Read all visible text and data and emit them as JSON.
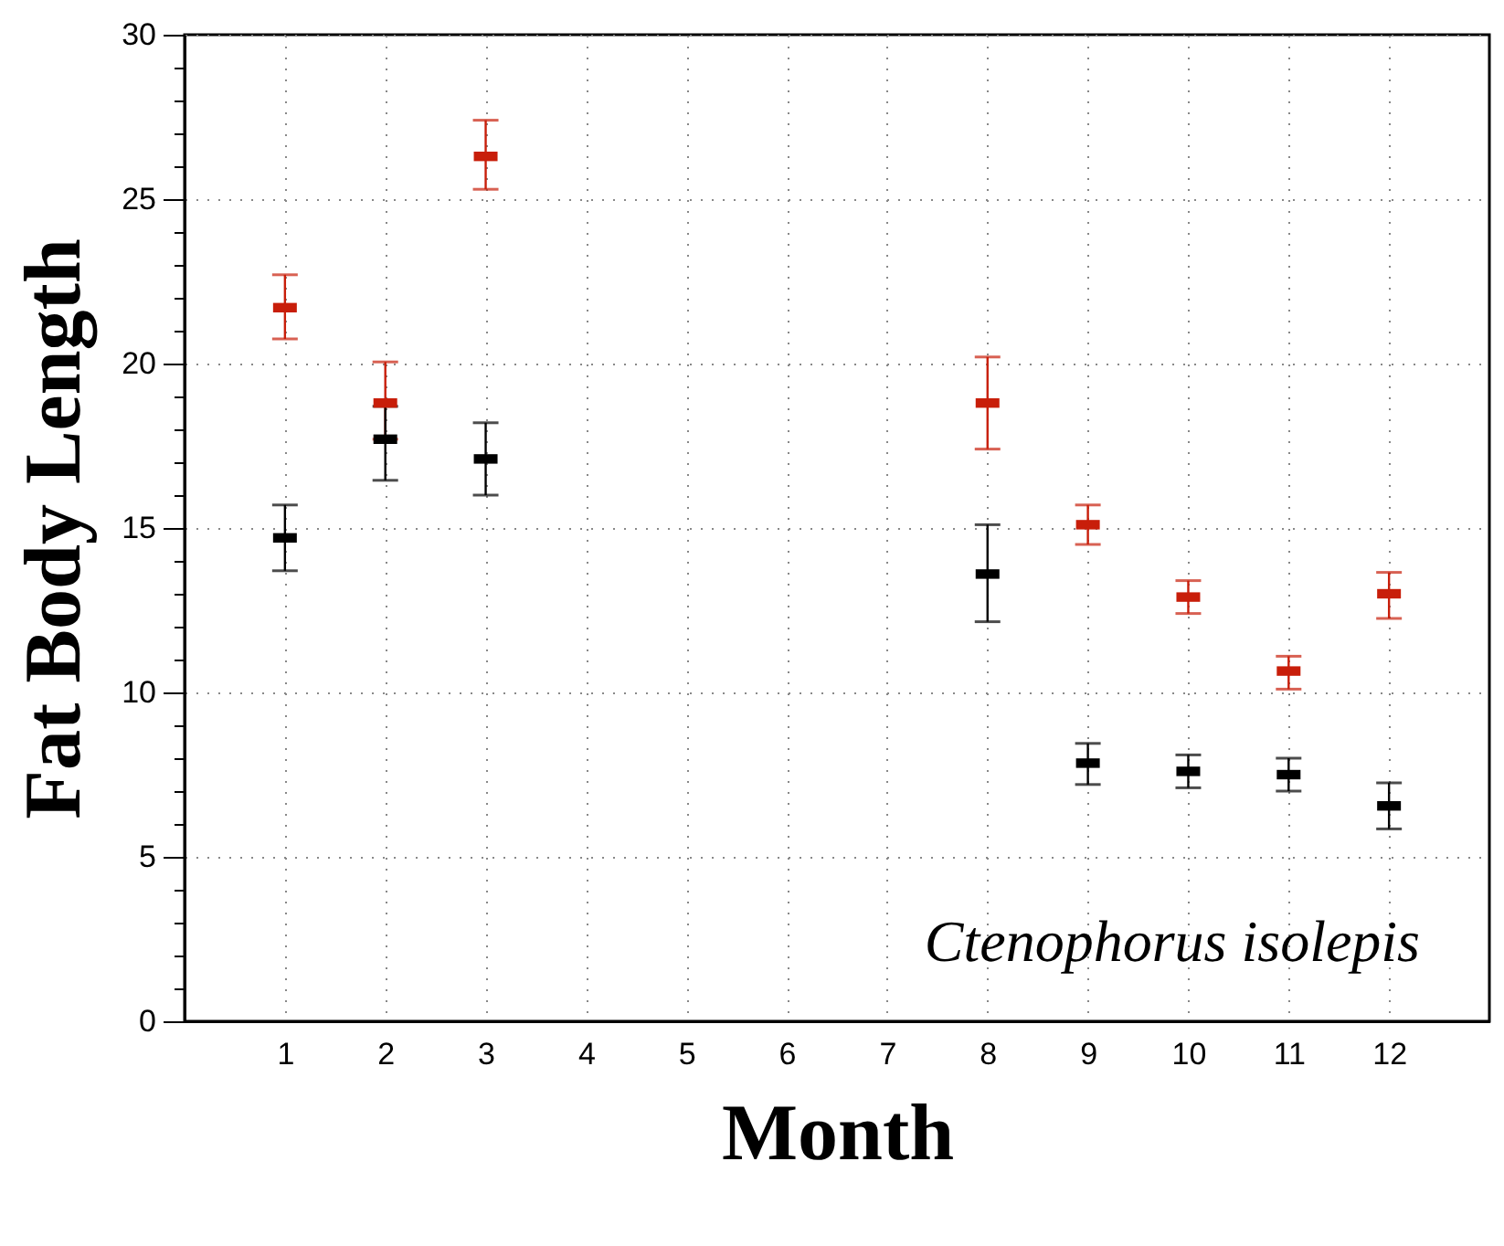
{
  "chart_data": {
    "type": "scatter",
    "xlabel": "Month",
    "ylabel": "Fat Body Length",
    "annotations": [
      "Ctenophorus isolepis"
    ],
    "x": [
      1,
      2,
      3,
      8,
      9,
      10,
      11,
      12
    ],
    "series": [
      {
        "color": "#c81e0a",
        "values": [
          21.7,
          18.8,
          26.3,
          18.8,
          15.1,
          12.9,
          10.65,
          13.0
        ],
        "errors": [
          [
            20.75,
            22.7
          ],
          [
            17.7,
            20.05
          ],
          [
            25.3,
            27.4
          ],
          [
            17.4,
            20.2
          ],
          [
            14.5,
            15.7
          ],
          [
            12.4,
            13.4
          ],
          [
            10.1,
            11.1
          ],
          [
            12.25,
            13.65
          ]
        ]
      },
      {
        "color": "#000000",
        "values": [
          14.7,
          17.7,
          17.1,
          13.6,
          7.85,
          7.6,
          7.5,
          6.55
        ],
        "errors": [
          [
            13.7,
            15.7
          ],
          [
            16.45,
            18.7
          ],
          [
            16.0,
            18.2
          ],
          [
            12.15,
            15.1
          ],
          [
            7.2,
            8.45
          ],
          [
            7.1,
            8.1
          ],
          [
            7.0,
            8.0
          ],
          [
            5.85,
            7.25
          ]
        ]
      }
    ],
    "xlim": [
      0,
      13
    ],
    "xticks": [
      1,
      2,
      3,
      4,
      5,
      6,
      7,
      8,
      9,
      10,
      11,
      12
    ],
    "ylim": [
      0,
      30
    ],
    "yticks": [
      0,
      {
        "value": 1,
        "label": null
      },
      {
        "value": 2,
        "label": null
      },
      {
        "value": 3,
        "label": null
      },
      {
        "value": 4,
        "label": null
      },
      5,
      {
        "value": 6,
        "label": null
      },
      {
        "value": 7,
        "label": null
      },
      {
        "value": 8,
        "label": null
      },
      {
        "value": 9,
        "label": null
      },
      10,
      {
        "value": 11,
        "label": null
      },
      {
        "value": 12,
        "label": null
      },
      {
        "value": 13,
        "label": null
      },
      {
        "value": 14,
        "label": null
      },
      15,
      {
        "value": 16,
        "label": null
      },
      {
        "value": 17,
        "label": null
      },
      {
        "value": 18,
        "label": null
      },
      {
        "value": 19,
        "label": null
      },
      20,
      {
        "value": 21,
        "label": null
      },
      {
        "value": 22,
        "label": null
      },
      {
        "value": 23,
        "label": null
      },
      {
        "value": 24,
        "label": null
      },
      25,
      {
        "value": 26,
        "label": null
      },
      {
        "value": 27,
        "label": null
      },
      {
        "value": 28,
        "label": null
      },
      {
        "value": 29,
        "label": null
      },
      30
    ],
    "grid": true
  }
}
